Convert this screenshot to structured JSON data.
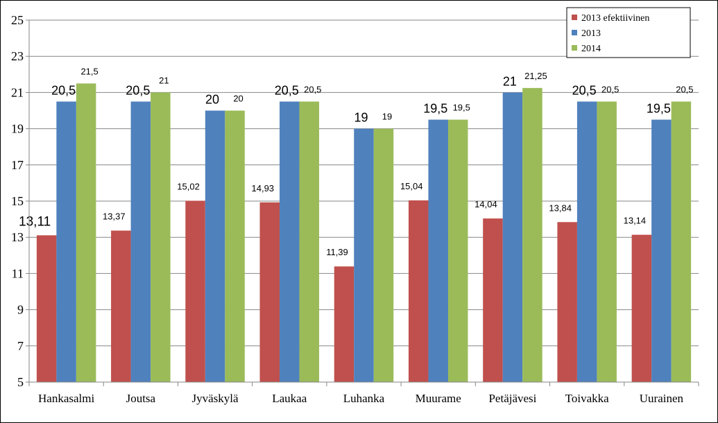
{
  "chart_data": {
    "type": "bar",
    "categories": [
      "Hankasalmi",
      "Joutsa",
      "Jyväskylä",
      "Laukaa",
      "Luhanka",
      "Muurame",
      "Petäjävesi",
      "Toivakka",
      "Uurainen"
    ],
    "series": [
      {
        "name": "2013 efektiivinen",
        "color": "#C0504D",
        "values": [
          13.11,
          13.37,
          15.02,
          14.93,
          11.39,
          15.04,
          14.04,
          13.84,
          13.14
        ],
        "labels": [
          "13,11",
          "13,37",
          "15,02",
          "14,93",
          "11,39",
          "15,04",
          "14,04",
          "13,84",
          "13,14"
        ]
      },
      {
        "name": "2013",
        "color": "#4F81BD",
        "values": [
          20.5,
          20.5,
          20,
          20.5,
          19,
          19.5,
          21,
          20.5,
          19.5
        ],
        "labels": [
          "20,5",
          "20,5",
          "20",
          "20,5",
          "19",
          "19,5",
          "21",
          "20,5",
          "19,5"
        ]
      },
      {
        "name": "2014",
        "color": "#9BBB59",
        "values": [
          21.5,
          21,
          20,
          20.5,
          19,
          19.5,
          21.25,
          20.5,
          20.5
        ],
        "labels": [
          "21,5",
          "21",
          "20",
          "20,5",
          "19",
          "19,5",
          "21,25",
          "20,5",
          "20,5"
        ]
      }
    ],
    "ylim": [
      5,
      25
    ],
    "yticks": [
      "5",
      "7",
      "9",
      "11",
      "13",
      "15",
      "17",
      "19",
      "21",
      "23",
      "25"
    ],
    "grid": true,
    "legend_position": "top-right",
    "title": "",
    "xlabel": "",
    "ylabel": ""
  }
}
